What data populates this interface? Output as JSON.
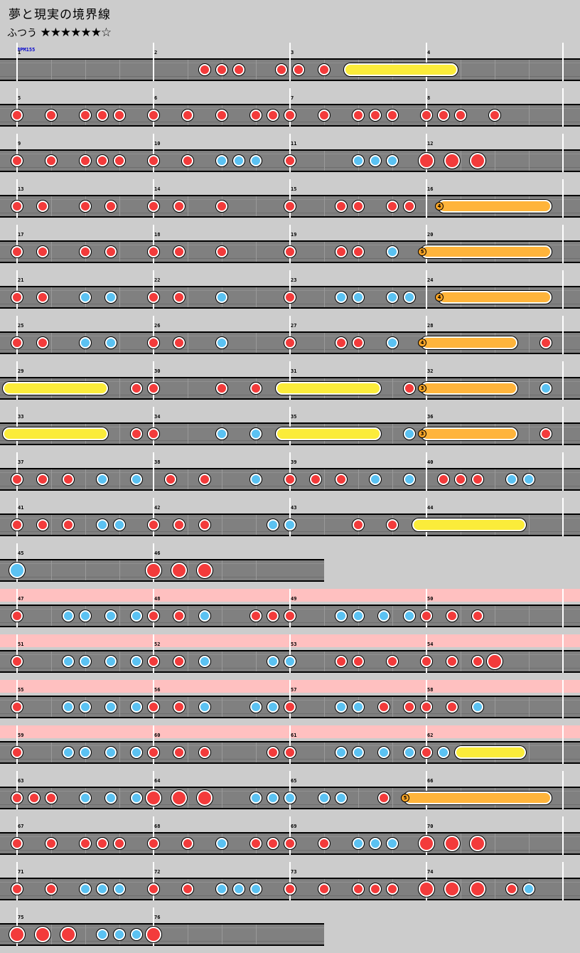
{
  "song": {
    "title": "夢と現実の境界線"
  },
  "difficulty": {
    "label": "ふつう",
    "stars": "★★★★★★☆",
    "level": 6,
    "max": 7
  },
  "bpm_label": "BPM155",
  "colors": {
    "background": "#cccccc",
    "lane": "#808080",
    "don": "#f33b3b",
    "ka": "#5bc2f2",
    "roll": "#fbec3a",
    "balloon": "#ffb43b",
    "gogo": "#ffc0c0"
  },
  "rows": [
    {
      "measures": [
        1,
        2,
        3,
        4
      ],
      "gogo": false,
      "notes": [
        {
          "t": "d",
          "b": 5.5
        },
        {
          "t": "d",
          "b": 6
        },
        {
          "t": "d",
          "b": 6.5
        },
        {
          "t": "d",
          "b": 7.75
        },
        {
          "t": "d",
          "b": 8.25
        },
        {
          "t": "d",
          "b": 9
        },
        {
          "t": "R",
          "b": 9.75,
          "e": 12.75
        }
      ]
    },
    {
      "measures": [
        5,
        6,
        7,
        8
      ],
      "gogo": false,
      "notes": [
        {
          "t": "d",
          "b": 0
        },
        {
          "t": "d",
          "b": 1
        },
        {
          "t": "d",
          "b": 2
        },
        {
          "t": "d",
          "b": 2.5
        },
        {
          "t": "d",
          "b": 3
        },
        {
          "t": "d",
          "b": 4
        },
        {
          "t": "d",
          "b": 5
        },
        {
          "t": "d",
          "b": 6
        },
        {
          "t": "d",
          "b": 7
        },
        {
          "t": "d",
          "b": 7.5
        },
        {
          "t": "d",
          "b": 8
        },
        {
          "t": "d",
          "b": 9
        },
        {
          "t": "d",
          "b": 10
        },
        {
          "t": "d",
          "b": 10.5
        },
        {
          "t": "d",
          "b": 11
        },
        {
          "t": "d",
          "b": 12
        },
        {
          "t": "d",
          "b": 12.5
        },
        {
          "t": "d",
          "b": 13
        },
        {
          "t": "d",
          "b": 14
        }
      ]
    },
    {
      "measures": [
        9,
        10,
        11,
        12
      ],
      "gogo": false,
      "notes": [
        {
          "t": "d",
          "b": 0
        },
        {
          "t": "d",
          "b": 1
        },
        {
          "t": "d",
          "b": 2
        },
        {
          "t": "d",
          "b": 2.5
        },
        {
          "t": "d",
          "b": 3
        },
        {
          "t": "d",
          "b": 4
        },
        {
          "t": "d",
          "b": 5
        },
        {
          "t": "k",
          "b": 6
        },
        {
          "t": "k",
          "b": 6.5
        },
        {
          "t": "k",
          "b": 7
        },
        {
          "t": "d",
          "b": 8
        },
        {
          "t": "k",
          "b": 10
        },
        {
          "t": "k",
          "b": 10.5
        },
        {
          "t": "k",
          "b": 11
        },
        {
          "t": "D",
          "b": 12
        },
        {
          "t": "D",
          "b": 12.75
        },
        {
          "t": "D",
          "b": 13.5
        }
      ]
    },
    {
      "measures": [
        13,
        14,
        15,
        16
      ],
      "gogo": false,
      "notes": [
        {
          "t": "d",
          "b": 0
        },
        {
          "t": "d",
          "b": 0.75
        },
        {
          "t": "d",
          "b": 2
        },
        {
          "t": "d",
          "b": 2.75
        },
        {
          "t": "d",
          "b": 4
        },
        {
          "t": "d",
          "b": 4.75
        },
        {
          "t": "d",
          "b": 6
        },
        {
          "t": "d",
          "b": 8
        },
        {
          "t": "d",
          "b": 9.5
        },
        {
          "t": "d",
          "b": 10
        },
        {
          "t": "d",
          "b": 11
        },
        {
          "t": "d",
          "b": 11.5
        },
        {
          "t": "B",
          "b": 12.5,
          "e": 15.5,
          "n": "4"
        }
      ]
    },
    {
      "measures": [
        17,
        18,
        19,
        20
      ],
      "gogo": false,
      "notes": [
        {
          "t": "d",
          "b": 0
        },
        {
          "t": "d",
          "b": 0.75
        },
        {
          "t": "d",
          "b": 2
        },
        {
          "t": "d",
          "b": 2.75
        },
        {
          "t": "d",
          "b": 4
        },
        {
          "t": "d",
          "b": 4.75
        },
        {
          "t": "d",
          "b": 6
        },
        {
          "t": "d",
          "b": 8
        },
        {
          "t": "d",
          "b": 9.5
        },
        {
          "t": "d",
          "b": 10
        },
        {
          "t": "k",
          "b": 11
        },
        {
          "t": "B",
          "b": 12,
          "e": 15.5,
          "n": "5"
        }
      ]
    },
    {
      "measures": [
        21,
        22,
        23,
        24
      ],
      "gogo": false,
      "notes": [
        {
          "t": "d",
          "b": 0
        },
        {
          "t": "d",
          "b": 0.75
        },
        {
          "t": "k",
          "b": 2
        },
        {
          "t": "k",
          "b": 2.75
        },
        {
          "t": "d",
          "b": 4
        },
        {
          "t": "d",
          "b": 4.75
        },
        {
          "t": "k",
          "b": 6
        },
        {
          "t": "d",
          "b": 8
        },
        {
          "t": "k",
          "b": 9.5
        },
        {
          "t": "k",
          "b": 10
        },
        {
          "t": "k",
          "b": 11
        },
        {
          "t": "k",
          "b": 11.5
        },
        {
          "t": "B",
          "b": 12.5,
          "e": 15.5,
          "n": "4"
        }
      ]
    },
    {
      "measures": [
        25,
        26,
        27,
        28
      ],
      "gogo": false,
      "notes": [
        {
          "t": "d",
          "b": 0
        },
        {
          "t": "d",
          "b": 0.75
        },
        {
          "t": "k",
          "b": 2
        },
        {
          "t": "k",
          "b": 2.75
        },
        {
          "t": "d",
          "b": 4
        },
        {
          "t": "d",
          "b": 4.75
        },
        {
          "t": "k",
          "b": 6
        },
        {
          "t": "d",
          "b": 8
        },
        {
          "t": "d",
          "b": 9.5
        },
        {
          "t": "d",
          "b": 10
        },
        {
          "t": "k",
          "b": 11
        },
        {
          "t": "B",
          "b": 12,
          "e": 14.5,
          "n": "4"
        },
        {
          "t": "d",
          "b": 15.5
        }
      ]
    },
    {
      "measures": [
        29,
        30,
        31,
        32
      ],
      "gogo": false,
      "notes": [
        {
          "t": "R",
          "b": -0.25,
          "e": 2.5
        },
        {
          "t": "d",
          "b": 3.5
        },
        {
          "t": "d",
          "b": 4
        },
        {
          "t": "d",
          "b": 6
        },
        {
          "t": "d",
          "b": 7
        },
        {
          "t": "R",
          "b": 7.75,
          "e": 10.5
        },
        {
          "t": "d",
          "b": 11.5
        },
        {
          "t": "B",
          "b": 12,
          "e": 14.5,
          "n": "3"
        },
        {
          "t": "k",
          "b": 15.5
        }
      ]
    },
    {
      "measures": [
        33,
        34,
        35,
        36
      ],
      "gogo": false,
      "notes": [
        {
          "t": "R",
          "b": -0.25,
          "e": 2.5
        },
        {
          "t": "d",
          "b": 3.5
        },
        {
          "t": "d",
          "b": 4
        },
        {
          "t": "k",
          "b": 6
        },
        {
          "t": "k",
          "b": 7
        },
        {
          "t": "R",
          "b": 7.75,
          "e": 10.5
        },
        {
          "t": "k",
          "b": 11.5
        },
        {
          "t": "B",
          "b": 12,
          "e": 14.5,
          "n": "3"
        },
        {
          "t": "d",
          "b": 15.5
        }
      ]
    },
    {
      "measures": [
        37,
        38,
        39,
        40
      ],
      "gogo": false,
      "notes": [
        {
          "t": "d",
          "b": 0
        },
        {
          "t": "d",
          "b": 0.75
        },
        {
          "t": "d",
          "b": 1.5
        },
        {
          "t": "k",
          "b": 2.5
        },
        {
          "t": "k",
          "b": 3.5
        },
        {
          "t": "d",
          "b": 4.5
        },
        {
          "t": "d",
          "b": 5.5
        },
        {
          "t": "k",
          "b": 7
        },
        {
          "t": "d",
          "b": 8
        },
        {
          "t": "d",
          "b": 8.75
        },
        {
          "t": "d",
          "b": 9.5
        },
        {
          "t": "k",
          "b": 10.5
        },
        {
          "t": "k",
          "b": 11.5
        },
        {
          "t": "d",
          "b": 12.5
        },
        {
          "t": "d",
          "b": 13
        },
        {
          "t": "d",
          "b": 13.5
        },
        {
          "t": "k",
          "b": 14.5
        },
        {
          "t": "k",
          "b": 15
        }
      ]
    },
    {
      "measures": [
        41,
        42,
        43,
        44
      ],
      "gogo": false,
      "notes": [
        {
          "t": "d",
          "b": 0
        },
        {
          "t": "d",
          "b": 0.75
        },
        {
          "t": "d",
          "b": 1.5
        },
        {
          "t": "k",
          "b": 2.5
        },
        {
          "t": "k",
          "b": 3
        },
        {
          "t": "d",
          "b": 4
        },
        {
          "t": "d",
          "b": 4.75
        },
        {
          "t": "d",
          "b": 5.5
        },
        {
          "t": "k",
          "b": 7.5
        },
        {
          "t": "k",
          "b": 8
        },
        {
          "t": "d",
          "b": 10
        },
        {
          "t": "d",
          "b": 11
        },
        {
          "t": "R",
          "b": 11.75,
          "e": 14.75
        }
      ]
    },
    {
      "measures": [
        45,
        46
      ],
      "gogo": false,
      "width": 9,
      "notes": [
        {
          "t": "K",
          "b": 0
        },
        {
          "t": "D",
          "b": 4
        },
        {
          "t": "D",
          "b": 4.75
        },
        {
          "t": "D",
          "b": 5.5
        }
      ]
    },
    {
      "measures": [
        47,
        48,
        49,
        50
      ],
      "gogo": true,
      "notes": [
        {
          "t": "d",
          "b": 0
        },
        {
          "t": "k",
          "b": 1.5
        },
        {
          "t": "k",
          "b": 2
        },
        {
          "t": "k",
          "b": 2.75
        },
        {
          "t": "k",
          "b": 3.5
        },
        {
          "t": "d",
          "b": 4
        },
        {
          "t": "d",
          "b": 4.75
        },
        {
          "t": "k",
          "b": 5.5
        },
        {
          "t": "d",
          "b": 7
        },
        {
          "t": "d",
          "b": 7.5
        },
        {
          "t": "d",
          "b": 8
        },
        {
          "t": "k",
          "b": 9.5
        },
        {
          "t": "k",
          "b": 10
        },
        {
          "t": "k",
          "b": 10.75
        },
        {
          "t": "k",
          "b": 11.5
        },
        {
          "t": "d",
          "b": 12
        },
        {
          "t": "d",
          "b": 12.75
        },
        {
          "t": "d",
          "b": 13.5
        }
      ]
    },
    {
      "measures": [
        51,
        52,
        53,
        54
      ],
      "gogo": true,
      "notes": [
        {
          "t": "d",
          "b": 0
        },
        {
          "t": "k",
          "b": 1.5
        },
        {
          "t": "k",
          "b": 2
        },
        {
          "t": "k",
          "b": 2.75
        },
        {
          "t": "k",
          "b": 3.5
        },
        {
          "t": "d",
          "b": 4
        },
        {
          "t": "d",
          "b": 4.75
        },
        {
          "t": "k",
          "b": 5.5
        },
        {
          "t": "k",
          "b": 7.5
        },
        {
          "t": "k",
          "b": 8
        },
        {
          "t": "d",
          "b": 9.5
        },
        {
          "t": "d",
          "b": 10
        },
        {
          "t": "d",
          "b": 11
        },
        {
          "t": "d",
          "b": 12
        },
        {
          "t": "d",
          "b": 12.75
        },
        {
          "t": "d",
          "b": 13.5
        },
        {
          "t": "D",
          "b": 14
        }
      ]
    },
    {
      "measures": [
        55,
        56,
        57,
        58
      ],
      "gogo": true,
      "notes": [
        {
          "t": "d",
          "b": 0
        },
        {
          "t": "k",
          "b": 1.5
        },
        {
          "t": "k",
          "b": 2
        },
        {
          "t": "k",
          "b": 2.75
        },
        {
          "t": "k",
          "b": 3.5
        },
        {
          "t": "d",
          "b": 4
        },
        {
          "t": "d",
          "b": 4.75
        },
        {
          "t": "k",
          "b": 5.5
        },
        {
          "t": "k",
          "b": 7
        },
        {
          "t": "k",
          "b": 7.5
        },
        {
          "t": "d",
          "b": 8
        },
        {
          "t": "k",
          "b": 9.5
        },
        {
          "t": "k",
          "b": 10
        },
        {
          "t": "d",
          "b": 10.75
        },
        {
          "t": "d",
          "b": 11.5
        },
        {
          "t": "d",
          "b": 12
        },
        {
          "t": "d",
          "b": 12.75
        },
        {
          "t": "k",
          "b": 13.5
        }
      ]
    },
    {
      "measures": [
        59,
        60,
        61,
        62
      ],
      "gogo": true,
      "notes": [
        {
          "t": "d",
          "b": 0
        },
        {
          "t": "k",
          "b": 1.5
        },
        {
          "t": "k",
          "b": 2
        },
        {
          "t": "k",
          "b": 2.75
        },
        {
          "t": "k",
          "b": 3.5
        },
        {
          "t": "d",
          "b": 4
        },
        {
          "t": "d",
          "b": 4.75
        },
        {
          "t": "d",
          "b": 5.5
        },
        {
          "t": "d",
          "b": 7.5
        },
        {
          "t": "d",
          "b": 8
        },
        {
          "t": "k",
          "b": 9.5
        },
        {
          "t": "k",
          "b": 10
        },
        {
          "t": "k",
          "b": 10.75
        },
        {
          "t": "k",
          "b": 11.5
        },
        {
          "t": "d",
          "b": 12
        },
        {
          "t": "k",
          "b": 12.5
        },
        {
          "t": "R",
          "b": 13,
          "e": 14.75
        }
      ]
    },
    {
      "measures": [
        63,
        64,
        65,
        66
      ],
      "gogo": false,
      "notes": [
        {
          "t": "d",
          "b": 0
        },
        {
          "t": "d",
          "b": 0.5
        },
        {
          "t": "d",
          "b": 1
        },
        {
          "t": "k",
          "b": 2
        },
        {
          "t": "k",
          "b": 2.75
        },
        {
          "t": "k",
          "b": 3.5
        },
        {
          "t": "D",
          "b": 4
        },
        {
          "t": "D",
          "b": 4.75
        },
        {
          "t": "D",
          "b": 5.5
        },
        {
          "t": "k",
          "b": 7
        },
        {
          "t": "k",
          "b": 7.5
        },
        {
          "t": "k",
          "b": 8
        },
        {
          "t": "k",
          "b": 9
        },
        {
          "t": "k",
          "b": 9.5
        },
        {
          "t": "d",
          "b": 10.75
        },
        {
          "t": "B",
          "b": 11.5,
          "e": 15.5,
          "n": "5"
        }
      ]
    },
    {
      "measures": [
        67,
        68,
        69,
        70
      ],
      "gogo": false,
      "notes": [
        {
          "t": "d",
          "b": 0
        },
        {
          "t": "d",
          "b": 1
        },
        {
          "t": "d",
          "b": 2
        },
        {
          "t": "d",
          "b": 2.5
        },
        {
          "t": "d",
          "b": 3
        },
        {
          "t": "d",
          "b": 4
        },
        {
          "t": "d",
          "b": 5
        },
        {
          "t": "k",
          "b": 6
        },
        {
          "t": "d",
          "b": 7
        },
        {
          "t": "d",
          "b": 7.5
        },
        {
          "t": "d",
          "b": 8
        },
        {
          "t": "d",
          "b": 9
        },
        {
          "t": "k",
          "b": 10
        },
        {
          "t": "k",
          "b": 10.5
        },
        {
          "t": "k",
          "b": 11
        },
        {
          "t": "D",
          "b": 12
        },
        {
          "t": "D",
          "b": 12.75
        },
        {
          "t": "D",
          "b": 13.5
        }
      ]
    },
    {
      "measures": [
        71,
        72,
        73,
        74
      ],
      "gogo": false,
      "notes": [
        {
          "t": "d",
          "b": 0
        },
        {
          "t": "d",
          "b": 1
        },
        {
          "t": "k",
          "b": 2
        },
        {
          "t": "k",
          "b": 2.5
        },
        {
          "t": "k",
          "b": 3
        },
        {
          "t": "d",
          "b": 4
        },
        {
          "t": "d",
          "b": 5
        },
        {
          "t": "k",
          "b": 6
        },
        {
          "t": "k",
          "b": 6.5
        },
        {
          "t": "k",
          "b": 7
        },
        {
          "t": "d",
          "b": 8
        },
        {
          "t": "d",
          "b": 9
        },
        {
          "t": "d",
          "b": 10
        },
        {
          "t": "d",
          "b": 10.5
        },
        {
          "t": "d",
          "b": 11
        },
        {
          "t": "D",
          "b": 12
        },
        {
          "t": "D",
          "b": 12.75
        },
        {
          "t": "D",
          "b": 13.5
        },
        {
          "t": "d",
          "b": 14.5
        },
        {
          "t": "k",
          "b": 15
        }
      ]
    },
    {
      "measures": [
        75,
        76
      ],
      "gogo": false,
      "width": 9,
      "notes": [
        {
          "t": "D",
          "b": 0
        },
        {
          "t": "D",
          "b": 0.75
        },
        {
          "t": "D",
          "b": 1.5
        },
        {
          "t": "k",
          "b": 2.5
        },
        {
          "t": "k",
          "b": 3
        },
        {
          "t": "k",
          "b": 3.5
        },
        {
          "t": "D",
          "b": 4
        }
      ]
    }
  ]
}
